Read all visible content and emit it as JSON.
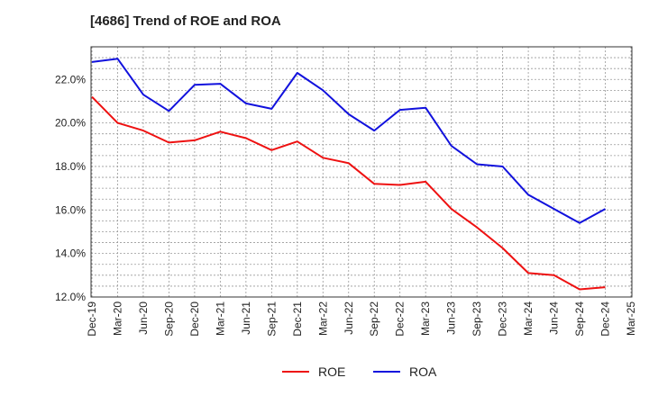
{
  "chart_data": {
    "type": "line",
    "title": "[4686]  Trend of ROE and ROA",
    "x": [
      "Dec-19",
      "Mar-20",
      "Jun-20",
      "Sep-20",
      "Dec-20",
      "Mar-21",
      "Jun-21",
      "Sep-21",
      "Dec-21",
      "Mar-22",
      "Jun-22",
      "Sep-22",
      "Dec-22",
      "Mar-23",
      "Jun-23",
      "Sep-23",
      "Dec-23",
      "Mar-24",
      "Jun-24",
      "Sep-24",
      "Dec-24",
      "Mar-25"
    ],
    "series": [
      {
        "name": "ROE",
        "color": "#ee1111",
        "values": [
          21.2,
          20.0,
          19.65,
          19.1,
          19.2,
          19.6,
          19.3,
          18.75,
          19.15,
          18.4,
          18.15,
          17.2,
          17.15,
          17.3,
          16.05,
          15.2,
          14.25,
          13.1,
          13.0,
          12.35,
          12.45,
          null
        ]
      },
      {
        "name": "ROA",
        "color": "#1111dd",
        "values": [
          22.8,
          22.95,
          21.3,
          20.55,
          21.75,
          21.8,
          20.9,
          20.65,
          22.3,
          21.5,
          20.4,
          19.65,
          20.6,
          20.7,
          18.95,
          18.1,
          18.0,
          16.7,
          16.05,
          15.4,
          16.05,
          null
        ]
      }
    ],
    "y_ticks": [
      "12.0%",
      "14.0%",
      "16.0%",
      "18.0%",
      "20.0%",
      "22.0%"
    ],
    "ylim": [
      12.0,
      23.5
    ],
    "grid": true,
    "legend": "bottom-center"
  }
}
